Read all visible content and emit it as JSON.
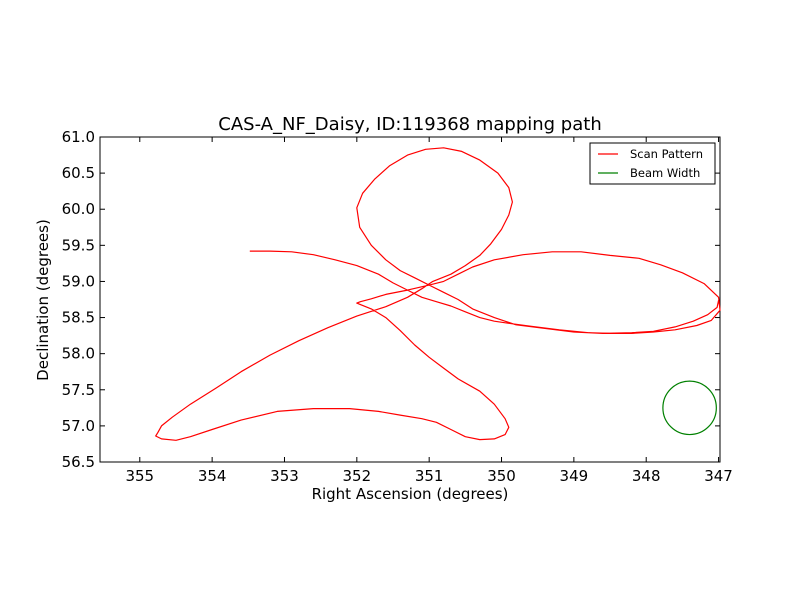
{
  "chart_data": {
    "type": "line",
    "title": "CAS-A_NF_Daisy, ID:119368 mapping path",
    "xlabel": "Right Ascension (degrees)",
    "ylabel": "Declination (degrees)",
    "xlim": [
      355.55,
      346.98
    ],
    "ylim": [
      56.5,
      61.0
    ],
    "x_ticks": [
      "355",
      "354",
      "353",
      "352",
      "351",
      "350",
      "349",
      "348",
      "347"
    ],
    "x_tick_values": [
      355,
      354,
      353,
      352,
      351,
      350,
      349,
      348,
      347
    ],
    "y_ticks": [
      "56.5",
      "57.0",
      "57.5",
      "58.0",
      "58.5",
      "59.0",
      "59.5",
      "60.0",
      "60.5",
      "61.0"
    ],
    "y_tick_values": [
      56.5,
      57.0,
      57.5,
      58.0,
      58.5,
      59.0,
      59.5,
      60.0,
      60.5,
      61.0
    ],
    "grid": false,
    "legend_position": "top-right",
    "series": [
      {
        "name": "Scan Pattern",
        "color": "#ff0000",
        "style": "line",
        "x": [
          353.48,
          353.2,
          352.9,
          352.6,
          352.3,
          352.0,
          351.7,
          351.5,
          351.3,
          351.1,
          350.9,
          350.7,
          350.5,
          350.3,
          350.1,
          349.9,
          349.6,
          349.2,
          348.8,
          348.5,
          348.2,
          347.9,
          347.6,
          347.3,
          347.1,
          346.98,
          347.0,
          347.2,
          347.5,
          347.8,
          348.1,
          348.5,
          348.9,
          349.3,
          349.7,
          350.1,
          350.4,
          350.6,
          350.8,
          351.0,
          351.3,
          351.6,
          351.8,
          351.95,
          352.0,
          351.95,
          351.8,
          351.6,
          351.4,
          351.2,
          351.0,
          350.8,
          350.6,
          350.3,
          350.1,
          349.95,
          349.9,
          349.95,
          350.1,
          350.3,
          350.5,
          350.7,
          350.9,
          351.1,
          351.4,
          351.7,
          352.1,
          352.6,
          353.1,
          353.6,
          354.0,
          354.3,
          354.5,
          354.7,
          354.78,
          354.75,
          354.7,
          354.55,
          354.3,
          353.95,
          353.6,
          353.2,
          352.8,
          352.4,
          352.0,
          351.6,
          351.3,
          351.1,
          350.95,
          350.7,
          350.5,
          350.3,
          350.15,
          350.0,
          349.9,
          349.85,
          349.9,
          350.05,
          350.3,
          350.55,
          350.8,
          351.05,
          351.3,
          351.55,
          351.75,
          351.92,
          352.0,
          351.96,
          351.8,
          351.6,
          351.4,
          351.2,
          351.0,
          350.8,
          350.6,
          350.4,
          350.1,
          349.8,
          349.4,
          349.0,
          348.6,
          348.2,
          347.9,
          347.6,
          347.35,
          347.15,
          347.02,
          347.0
        ],
        "y": [
          59.42,
          59.42,
          59.41,
          59.37,
          59.3,
          59.22,
          59.1,
          58.98,
          58.88,
          58.78,
          58.72,
          58.66,
          58.58,
          58.5,
          58.45,
          58.42,
          58.38,
          58.33,
          58.29,
          58.28,
          58.28,
          58.3,
          58.33,
          58.39,
          58.46,
          58.6,
          58.78,
          58.97,
          59.12,
          59.23,
          59.32,
          59.36,
          59.41,
          59.41,
          59.37,
          59.3,
          59.2,
          59.1,
          59.0,
          58.95,
          58.88,
          58.82,
          58.76,
          58.72,
          58.7,
          58.68,
          58.62,
          58.5,
          58.32,
          58.12,
          57.95,
          57.8,
          57.65,
          57.48,
          57.3,
          57.1,
          56.98,
          56.88,
          56.82,
          56.81,
          56.85,
          56.95,
          57.05,
          57.1,
          57.15,
          57.2,
          57.24,
          57.24,
          57.2,
          57.08,
          56.95,
          56.85,
          56.8,
          56.82,
          56.86,
          56.91,
          57.0,
          57.12,
          57.3,
          57.52,
          57.75,
          57.98,
          58.18,
          58.36,
          58.52,
          58.65,
          58.78,
          58.9,
          59.0,
          59.1,
          59.22,
          59.36,
          59.52,
          59.72,
          59.92,
          60.1,
          60.3,
          60.5,
          60.68,
          60.8,
          60.85,
          60.83,
          60.75,
          60.6,
          60.42,
          60.22,
          60.02,
          59.75,
          59.5,
          59.3,
          59.15,
          59.05,
          58.95,
          58.85,
          58.75,
          58.62,
          58.5,
          58.4,
          58.35,
          58.3,
          58.28,
          58.29,
          58.31,
          58.37,
          58.45,
          58.54,
          58.64,
          58.74
        ]
      },
      {
        "name": "Beam Width",
        "color": "#008000",
        "style": "circle",
        "center": [
          347.4,
          57.25
        ],
        "radius_deg": 0.37
      }
    ]
  }
}
